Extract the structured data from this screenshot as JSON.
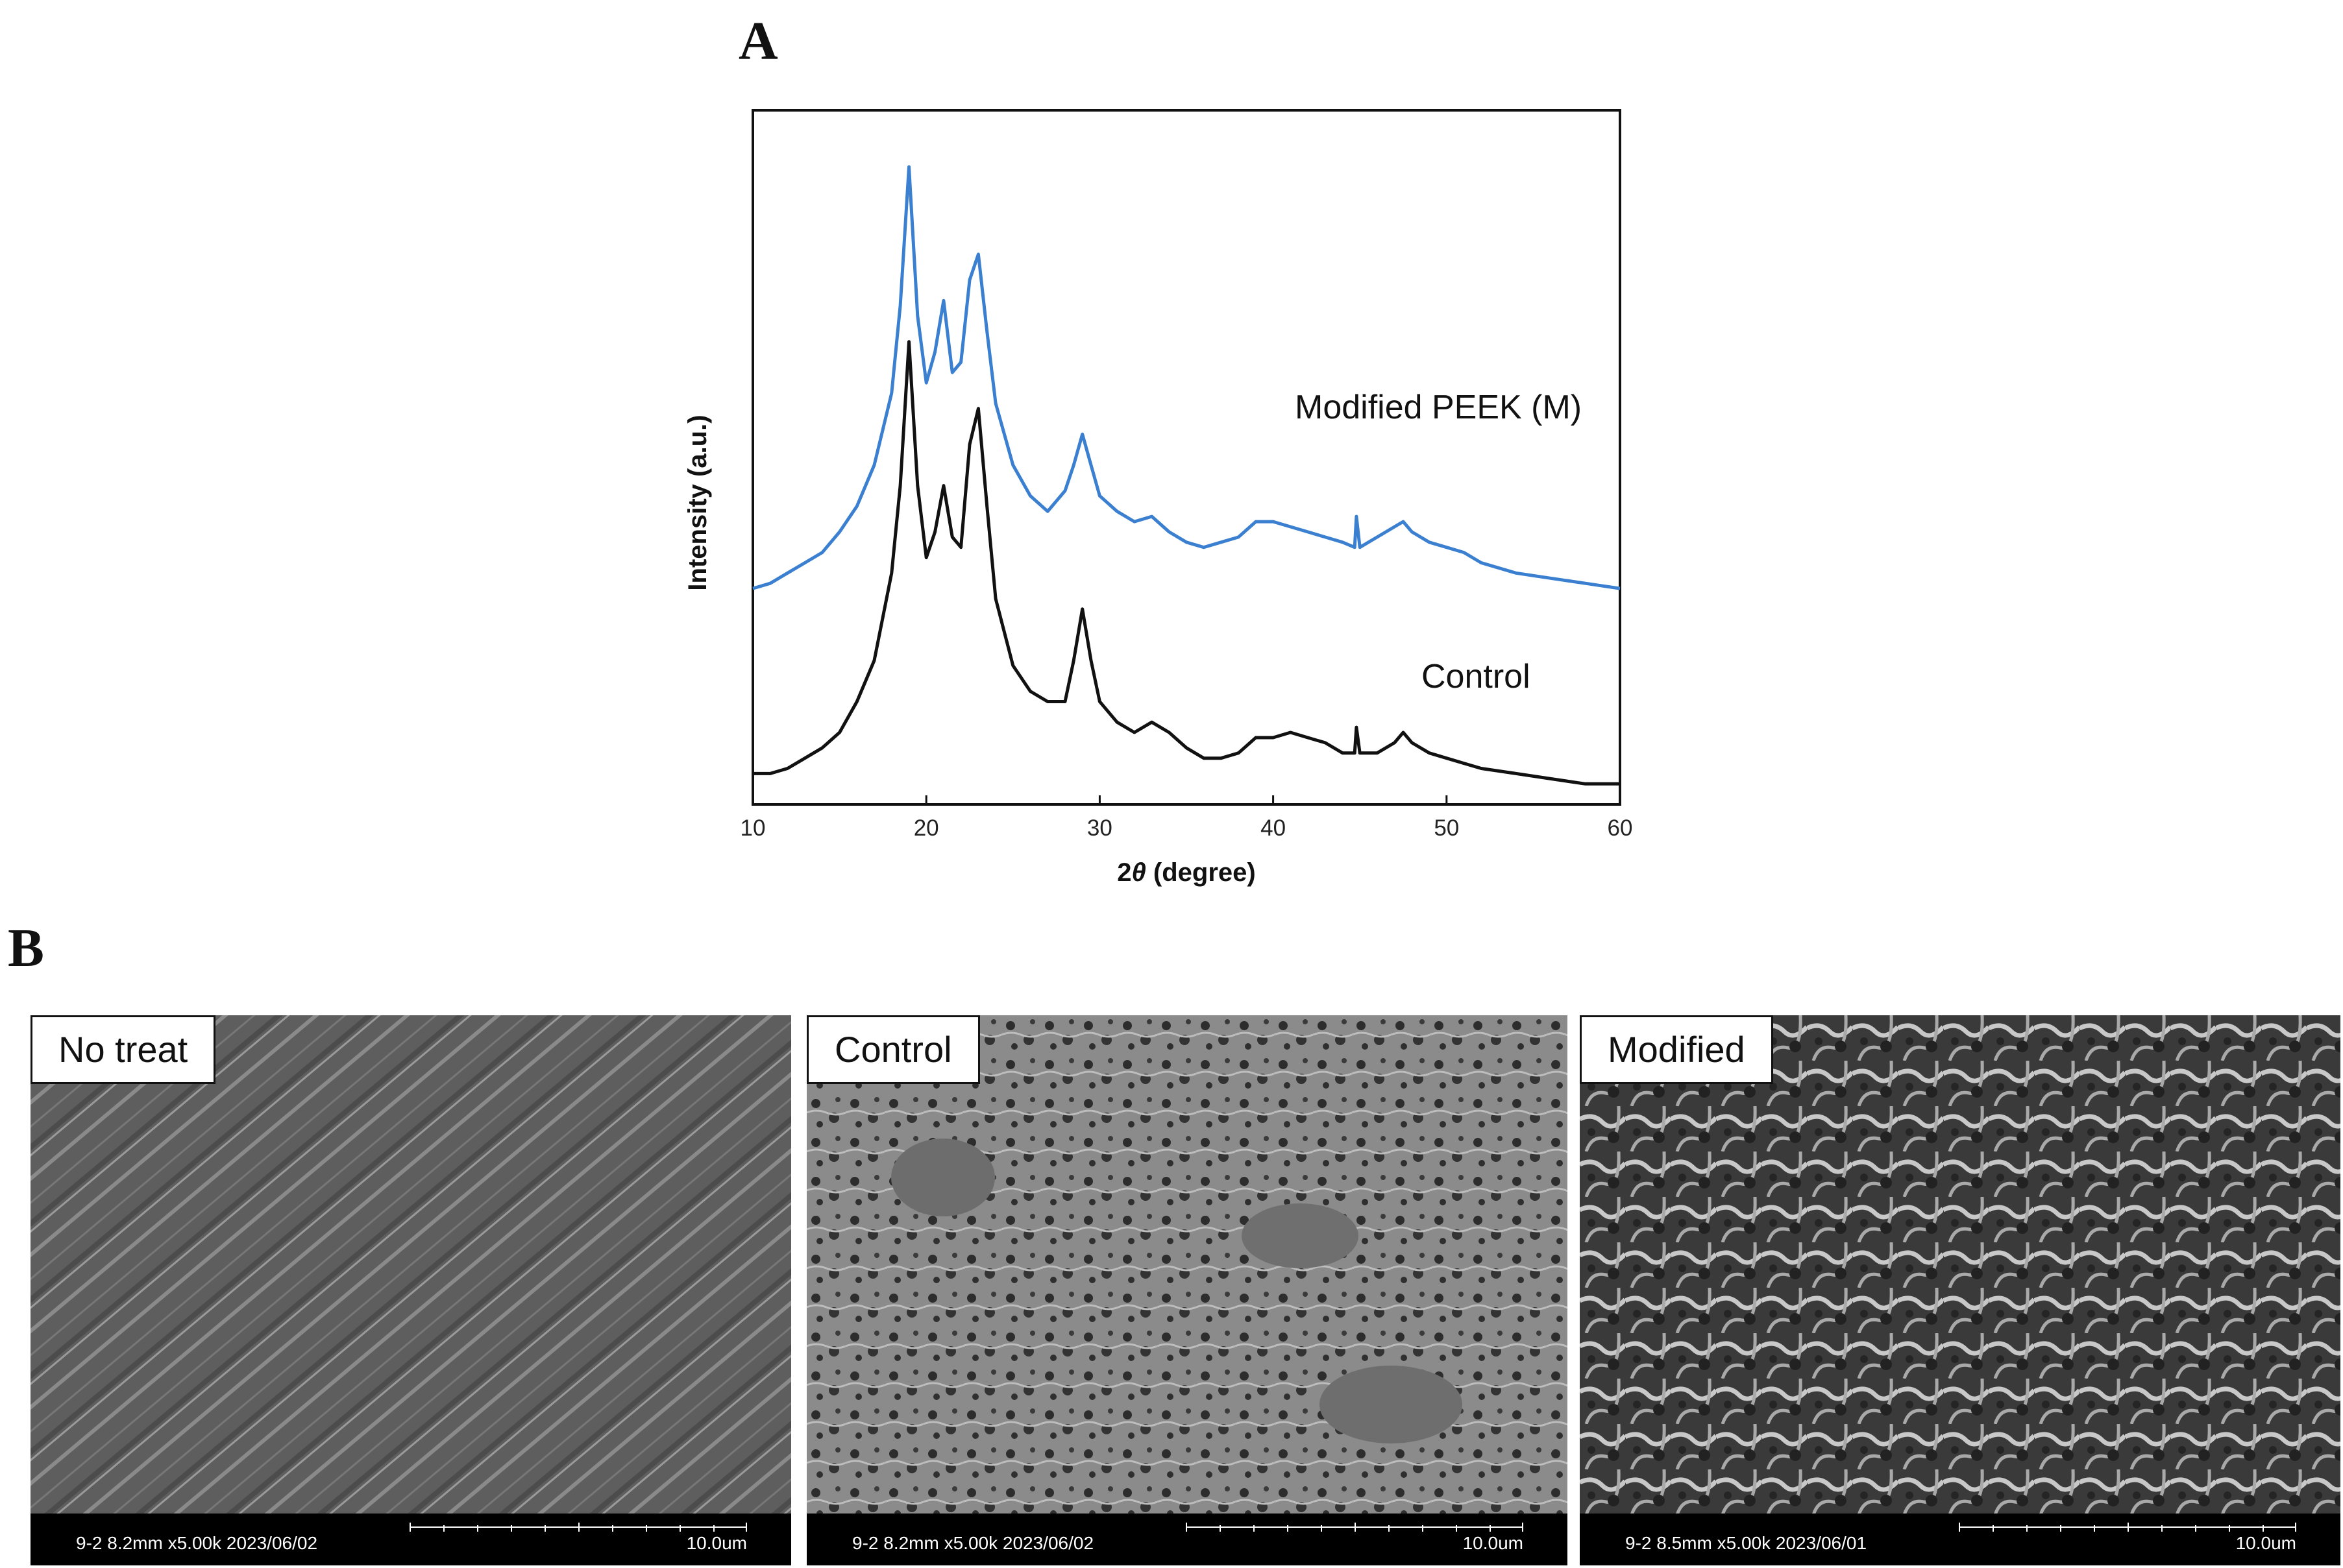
{
  "figure": {
    "panel_a_letter": "A",
    "panel_b_letter": "B"
  },
  "chart_data": {
    "type": "line",
    "xlabel_prefix": "2",
    "xlabel_symbol": "θ",
    "xlabel_suffix": " (degree)",
    "ylabel": "Intensity (a.u.)",
    "xlim": [
      10,
      60
    ],
    "xticks": [
      10,
      20,
      30,
      40,
      50,
      60
    ],
    "y_tick_labels_shown": false,
    "grid": false,
    "x": [
      10,
      11,
      12,
      13,
      14,
      15,
      16,
      17,
      18,
      18.5,
      19,
      19.5,
      20,
      20.5,
      21,
      21.5,
      22,
      22.5,
      23,
      23.5,
      24,
      25,
      26,
      27,
      28,
      28.5,
      29,
      29.5,
      30,
      31,
      32,
      33,
      34,
      35,
      36,
      37,
      38,
      39,
      40,
      41,
      42,
      43,
      44,
      44.7,
      44.8,
      45,
      46,
      47,
      47.5,
      48,
      49,
      50,
      51,
      52,
      54,
      56,
      58,
      60
    ],
    "series": [
      {
        "name": "Modified PEEK (M)",
        "color": "#3a7fd0",
        "values": [
          0.42,
          0.43,
          0.45,
          0.47,
          0.49,
          0.53,
          0.58,
          0.66,
          0.8,
          0.97,
          1.24,
          0.95,
          0.82,
          0.88,
          0.98,
          0.84,
          0.86,
          1.02,
          1.07,
          0.92,
          0.78,
          0.66,
          0.6,
          0.57,
          0.61,
          0.66,
          0.72,
          0.66,
          0.6,
          0.57,
          0.55,
          0.56,
          0.53,
          0.51,
          0.5,
          0.51,
          0.52,
          0.55,
          0.55,
          0.54,
          0.53,
          0.52,
          0.51,
          0.5,
          0.56,
          0.5,
          0.52,
          0.54,
          0.55,
          0.53,
          0.51,
          0.5,
          0.49,
          0.47,
          0.45,
          0.44,
          0.43,
          0.42
        ]
      },
      {
        "name": "Control",
        "color": "#111111",
        "values": [
          0.06,
          0.06,
          0.07,
          0.09,
          0.11,
          0.14,
          0.2,
          0.28,
          0.45,
          0.62,
          0.9,
          0.62,
          0.48,
          0.53,
          0.62,
          0.52,
          0.5,
          0.7,
          0.77,
          0.58,
          0.4,
          0.27,
          0.22,
          0.2,
          0.2,
          0.28,
          0.38,
          0.28,
          0.2,
          0.16,
          0.14,
          0.16,
          0.14,
          0.11,
          0.09,
          0.09,
          0.1,
          0.13,
          0.13,
          0.14,
          0.13,
          0.12,
          0.1,
          0.1,
          0.15,
          0.1,
          0.1,
          0.12,
          0.14,
          0.12,
          0.1,
          0.09,
          0.08,
          0.07,
          0.06,
          0.05,
          0.04,
          0.04
        ]
      }
    ],
    "ylim": [
      0,
      1.35
    ]
  },
  "sem_panels": [
    {
      "label": "No treat",
      "meta": "9-2 8.2mm x5.00k 2023/06/02",
      "scale": "10.0um"
    },
    {
      "label": "Control",
      "meta": "9-2 8.2mm x5.00k 2023/06/02",
      "scale": "10.0um"
    },
    {
      "label": "Modified",
      "meta": "9-2 8.5mm x5.00k 2023/06/01",
      "scale": "10.0um"
    }
  ]
}
